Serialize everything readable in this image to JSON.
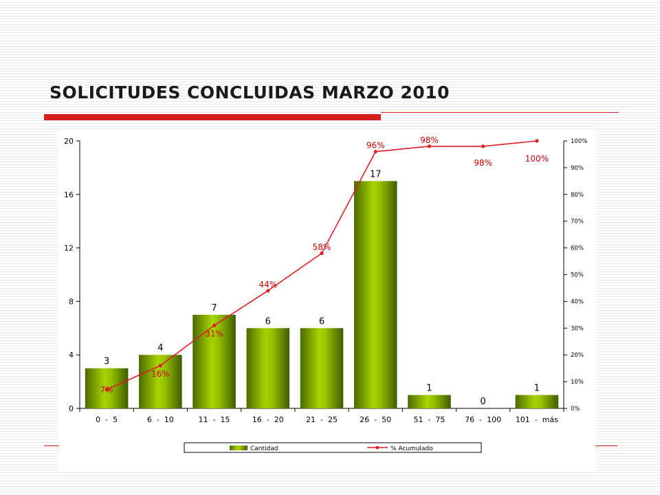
{
  "slide": {
    "title": "SOLICITUDES CONCLUIDAS MARZO 2010"
  },
  "colors": {
    "title_rule": "#d62020",
    "bar_light": "#a8d400",
    "bar_dark": "#4a6a00",
    "line": "#dd1f26",
    "pct_label": "#cc0000"
  },
  "chart_data": {
    "type": "bar",
    "categories": [
      "0  -  5",
      "6  -  10",
      "11  -  15",
      "16  -  20",
      "21  -  25",
      "26  -  50",
      "51  -  75",
      "76  -  100",
      "101  -  más"
    ],
    "series": [
      {
        "name": "Cantidad",
        "type": "bar",
        "axis": "left",
        "values": [
          3,
          4,
          7,
          6,
          6,
          17,
          1,
          0,
          1
        ]
      },
      {
        "name": "% Acumulado",
        "type": "line",
        "axis": "right",
        "values": [
          0.07,
          0.16,
          0.31,
          0.44,
          0.58,
          0.96,
          0.98,
          0.98,
          1.0
        ]
      }
    ],
    "bar_labels": [
      "3",
      "4",
      "7",
      "6",
      "6",
      "17",
      "1",
      "0",
      "1"
    ],
    "line_labels": [
      "7%",
      "16%",
      "31%",
      "44%",
      "58%",
      "96%",
      "98%",
      "98%",
      "100%"
    ],
    "y_left": {
      "ticks": [
        "0",
        "4",
        "8",
        "12",
        "16",
        "20"
      ],
      "range": [
        0,
        20
      ]
    },
    "y_right": {
      "ticks": [
        "0%",
        "10%",
        "20%",
        "30%",
        "40%",
        "50%",
        "60%",
        "70%",
        "80%",
        "90%",
        "100%"
      ],
      "range": [
        0,
        1
      ]
    },
    "grid": false,
    "legend": {
      "position": "bottom",
      "items": [
        "Cantidad",
        "% Acumulado"
      ]
    }
  }
}
